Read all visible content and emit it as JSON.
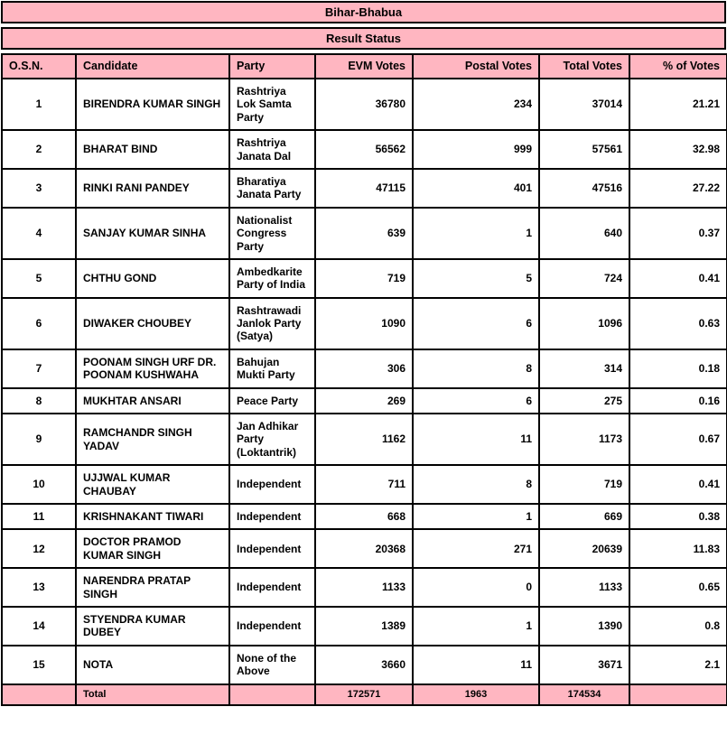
{
  "title": "Bihar-Bhabua",
  "subtitle": "Result Status",
  "columns": [
    "O.S.N.",
    "Candidate",
    "Party",
    "EVM Votes",
    "Postal Votes",
    "Total Votes",
    "% of Votes"
  ],
  "rows": [
    {
      "osn": "1",
      "candidate": "BIRENDRA KUMAR SINGH",
      "party": "Rashtriya Lok Samta Party",
      "evm": "36780",
      "postal": "234",
      "total": "37014",
      "pct": "21.21"
    },
    {
      "osn": "2",
      "candidate": "BHARAT BIND",
      "party": "Rashtriya Janata Dal",
      "evm": "56562",
      "postal": "999",
      "total": "57561",
      "pct": "32.98"
    },
    {
      "osn": "3",
      "candidate": "RINKI RANI PANDEY",
      "party": "Bharatiya Janata Party",
      "evm": "47115",
      "postal": "401",
      "total": "47516",
      "pct": "27.22"
    },
    {
      "osn": "4",
      "candidate": "SANJAY KUMAR SINHA",
      "party": "Nationalist Congress Party",
      "evm": "639",
      "postal": "1",
      "total": "640",
      "pct": "0.37"
    },
    {
      "osn": "5",
      "candidate": "CHTHU GOND",
      "party": "Ambedkarite Party of India",
      "evm": "719",
      "postal": "5",
      "total": "724",
      "pct": "0.41"
    },
    {
      "osn": "6",
      "candidate": "DIWAKER CHOUBEY",
      "party": "Rashtrawadi Janlok Party (Satya)",
      "evm": "1090",
      "postal": "6",
      "total": "1096",
      "pct": "0.63"
    },
    {
      "osn": "7",
      "candidate": "POONAM SINGH URF DR. POONAM KUSHWAHA",
      "party": "Bahujan Mukti Party",
      "evm": "306",
      "postal": "8",
      "total": "314",
      "pct": "0.18"
    },
    {
      "osn": "8",
      "candidate": "MUKHTAR ANSARI",
      "party": "Peace Party",
      "evm": "269",
      "postal": "6",
      "total": "275",
      "pct": "0.16"
    },
    {
      "osn": "9",
      "candidate": "RAMCHANDR SINGH YADAV",
      "party": "Jan Adhikar Party (Loktantrik)",
      "evm": "1162",
      "postal": "11",
      "total": "1173",
      "pct": "0.67"
    },
    {
      "osn": "10",
      "candidate": "UJJWAL KUMAR CHAUBAY",
      "party": "Independent",
      "evm": "711",
      "postal": "8",
      "total": "719",
      "pct": "0.41"
    },
    {
      "osn": "11",
      "candidate": "KRISHNAKANT TIWARI",
      "party": "Independent",
      "evm": "668",
      "postal": "1",
      "total": "669",
      "pct": "0.38"
    },
    {
      "osn": "12",
      "candidate": "DOCTOR PRAMOD KUMAR SINGH",
      "party": "Independent",
      "evm": "20368",
      "postal": "271",
      "total": "20639",
      "pct": "11.83"
    },
    {
      "osn": "13",
      "candidate": "NARENDRA PRATAP SINGH",
      "party": "Independent",
      "evm": "1133",
      "postal": "0",
      "total": "1133",
      "pct": "0.65"
    },
    {
      "osn": "14",
      "candidate": "STYENDRA KUMAR DUBEY",
      "party": "Independent",
      "evm": "1389",
      "postal": "1",
      "total": "1390",
      "pct": "0.8"
    },
    {
      "osn": "15",
      "candidate": "NOTA",
      "party": "None of the Above",
      "evm": "3660",
      "postal": "11",
      "total": "3671",
      "pct": "2.1"
    }
  ],
  "total_row": {
    "label": "Total",
    "evm": "172571",
    "postal": "1963",
    "total": "174534"
  },
  "colors": {
    "header_pink": "#FFB6C1",
    "border": "#000000",
    "text": "#000000",
    "row_bg": "#FFFFFF"
  }
}
